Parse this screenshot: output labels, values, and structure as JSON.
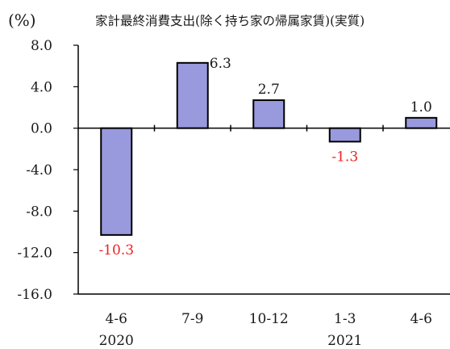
{
  "chart_data": {
    "type": "bar",
    "title": "家計最終消費支出(除く持ち家の帰属家賃)(実質)",
    "ylabel": "(%)",
    "categories": [
      "4-6",
      "7-9",
      "10-12",
      "1-3",
      "4-6"
    ],
    "year_labels": [
      "2020",
      "",
      "",
      "2021",
      ""
    ],
    "values": [
      -10.3,
      6.3,
      2.7,
      -1.3,
      1.0
    ],
    "value_labels": [
      "-10.3",
      "6.3",
      "2.7",
      "-1.3",
      "1.0"
    ],
    "yticks": [
      "8.0",
      "4.0",
      "0.0",
      "-4.0",
      "-8.0",
      "-12.0",
      "-16.0"
    ],
    "ylim": [
      -16,
      8
    ],
    "grid": false,
    "colors": {
      "bar_fill": "#9999dd",
      "bar_stroke": "#000000",
      "negative_label": "#ee2222",
      "positive_label": "#1a1a1a"
    }
  }
}
